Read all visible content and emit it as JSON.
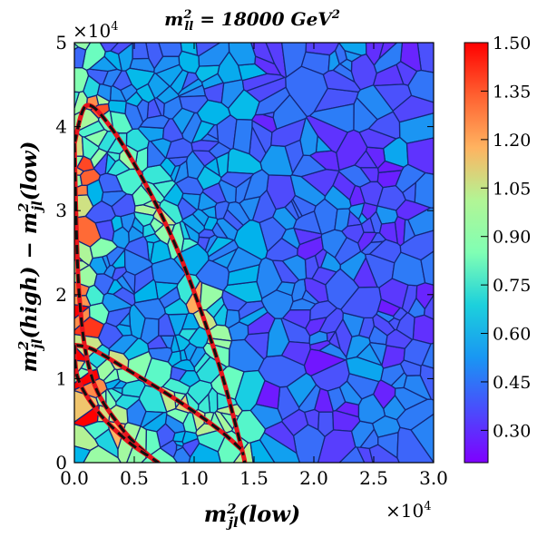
{
  "chart_data": {
    "type": "voronoi-heatmap",
    "title": "m²_ll = 18000 GeV²",
    "title_parts": {
      "var": "m",
      "sup": "2",
      "sub": "ll",
      "eq": " = 18000 ",
      "unit": "GeV",
      "unit_sup": "2"
    },
    "xlabel_parts": {
      "var": "m",
      "sup": "2",
      "sub": "jl",
      "rest": "(low)"
    },
    "ylabel_parts": {
      "left": "m",
      "sup1": "2",
      "sub1": "jl",
      "mid": "(high) − m",
      "sup2": "2",
      "sub2": "jl",
      "right": "(low)"
    },
    "xlim": [
      0,
      30000
    ],
    "ylim": [
      0,
      50000
    ],
    "x_ticks": [
      0,
      5000,
      10000,
      15000,
      20000,
      25000,
      30000
    ],
    "x_tick_labels": [
      "0.0",
      "0.5",
      "1.0",
      "1.5",
      "2.0",
      "2.5",
      "3.0"
    ],
    "y_ticks": [
      0,
      10000,
      20000,
      30000,
      40000,
      50000
    ],
    "y_tick_labels": [
      "0",
      "1",
      "2",
      "3",
      "4",
      "5"
    ],
    "x_multiplier": "×10",
    "x_multiplier_exp": "4",
    "y_multiplier": "×10",
    "y_multiplier_exp": "4",
    "colorbar": {
      "min": 0.2,
      "max": 1.5,
      "ticks": [
        0.3,
        0.45,
        0.6,
        0.75,
        0.9,
        1.05,
        1.2,
        1.35,
        1.5
      ],
      "tick_labels": [
        "0.30",
        "0.45",
        "0.60",
        "0.75",
        "0.90",
        "1.05",
        "1.20",
        "1.35",
        "1.50"
      ],
      "colormap": "rainbow"
    },
    "cell_count_estimate": 520,
    "region_description": "ratio values mostly 0.3-0.6, higher (0.7-1.1) along kinematic edges",
    "boundary_curves": [
      {
        "name": "outer-edge",
        "style": "black-dashed-on-red",
        "points": [
          [
            0,
            38000
          ],
          [
            1000,
            42500
          ],
          [
            3000,
            40000
          ],
          [
            6000,
            33000
          ],
          [
            9000,
            24000
          ],
          [
            12000,
            12000
          ],
          [
            14000,
            1500
          ],
          [
            14200,
            0
          ]
        ]
      },
      {
        "name": "outer-edge-inner",
        "style": "black-dashed-on-red",
        "points": [
          [
            0,
            38000
          ],
          [
            400,
            20000
          ],
          [
            1500,
            10000
          ],
          [
            4000,
            4000
          ],
          [
            6500,
            500
          ],
          [
            7000,
            0
          ]
        ]
      },
      {
        "name": "lower-edge",
        "style": "black-dashed-on-red",
        "points": [
          [
            0,
            14000
          ],
          [
            1500,
            13500
          ],
          [
            4500,
            11000
          ],
          [
            8500,
            7500
          ],
          [
            12000,
            4000
          ],
          [
            14000,
            1500
          ]
        ]
      },
      {
        "name": "lower-edge-inner",
        "style": "black-dashed-on-red",
        "points": [
          [
            0,
            14000
          ],
          [
            300,
            10000
          ],
          [
            2000,
            6000
          ],
          [
            4500,
            2500
          ],
          [
            6500,
            500
          ],
          [
            7000,
            0
          ]
        ]
      }
    ],
    "colors": {
      "cell_stroke": "#14277a",
      "curve_red": "#e8141c",
      "curve_black": "#111111"
    }
  }
}
